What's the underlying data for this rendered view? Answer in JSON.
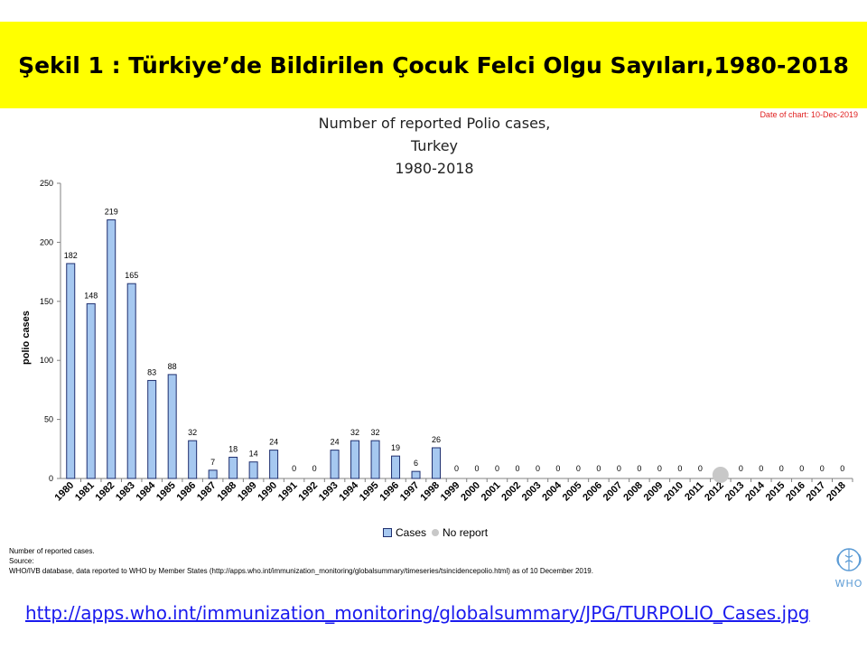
{
  "banner": {
    "title": "Şekil 1 : Türkiye’de Bildirilen Çocuk Felci Olgu Sayıları,1980-2018"
  },
  "chart_date": "Date of chart: 10-Dec-2019",
  "chart_data": {
    "type": "bar",
    "title_lines": [
      "Number of reported Polio cases,",
      "Turkey",
      "1980-2018"
    ],
    "ylabel": "polio cases",
    "ylim": [
      0,
      250
    ],
    "yticks": [
      0,
      50,
      100,
      150,
      200,
      250
    ],
    "categories": [
      "1980",
      "1981",
      "1982",
      "1983",
      "1984",
      "1985",
      "1986",
      "1987",
      "1988",
      "1989",
      "1990",
      "1991",
      "1992",
      "1993",
      "1994",
      "1995",
      "1996",
      "1997",
      "1998",
      "1999",
      "2000",
      "2001",
      "2002",
      "2003",
      "2004",
      "2005",
      "2006",
      "2007",
      "2008",
      "2009",
      "2010",
      "2011",
      "2012",
      "2013",
      "2014",
      "2015",
      "2016",
      "2017",
      "2018"
    ],
    "series": [
      {
        "name": "Cases",
        "values": [
          182,
          148,
          219,
          165,
          83,
          88,
          32,
          7,
          18,
          14,
          24,
          0,
          0,
          24,
          32,
          32,
          19,
          6,
          26,
          0,
          0,
          0,
          0,
          0,
          0,
          0,
          0,
          0,
          0,
          0,
          0,
          0,
          null,
          0,
          0,
          0,
          0,
          0,
          0
        ]
      }
    ],
    "no_report_years": [
      "2012"
    ],
    "legend": [
      "Cases",
      "No report"
    ],
    "legend_position": "bottom",
    "grid": false,
    "colors": {
      "bar_fill": "#a6c8f0",
      "bar_stroke": "#1f2f6f",
      "no_report": "#c8c8c8"
    }
  },
  "notes": [
    "Number of reported cases.",
    "Source:",
    "WHO/IVB database, data reported to WHO by Member States (http://apps.who.int/immunization_monitoring/globalsummary/timeseries/tsincidencepolio.html) as of 10 December 2019."
  ],
  "logo_text": "WHO",
  "link": "http://apps.who.int/immunization_monitoring/globalsummary/JPG/TURPOLIO_Cases.jpg"
}
